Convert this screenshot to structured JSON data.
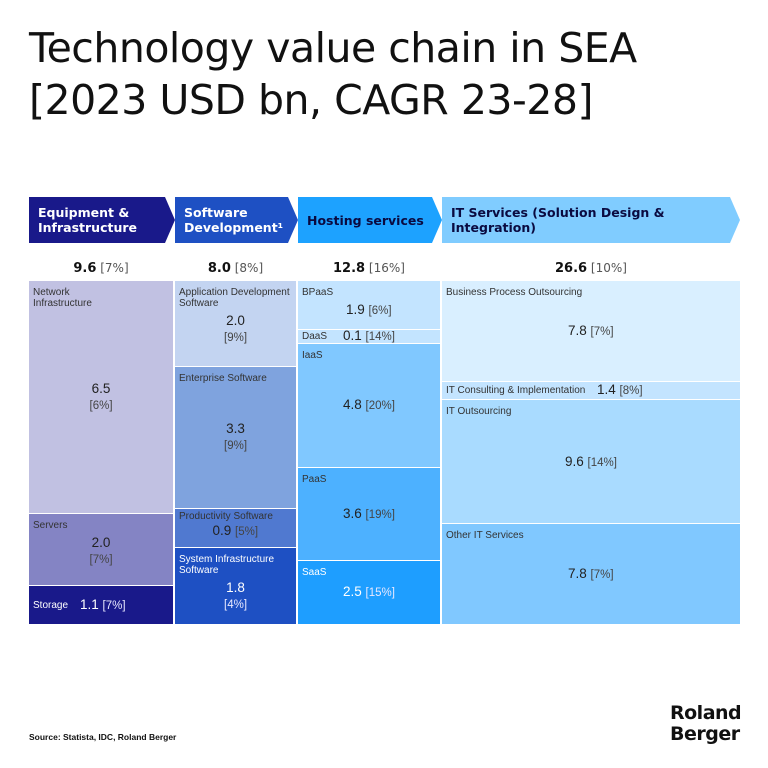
{
  "chart_data": {
    "type": "table",
    "title": "Technology value chain in SEA [2023 USD bn, CAGR 23-28]",
    "title_lines": [
      "Technology value chain in SEA",
      "[2023 USD bn, CAGR 23-28]"
    ],
    "units": "USD bn (2023), CAGR 2023-2028",
    "columns": [
      {
        "name": "Equipment & Infrastructure",
        "total": "9.6",
        "cagr": "[7%]",
        "header_color": "#19198a",
        "text_color": "#ffffff",
        "segments": [
          {
            "label": "Network Infrastructure",
            "value": 6.5,
            "cagr": "[6%]",
            "color": "#c1c1e2",
            "dark": false
          },
          {
            "label": "Servers",
            "value": 2.0,
            "cagr": "[7%]",
            "color": "#8484c4",
            "dark": false
          },
          {
            "label": "Storage",
            "value": 1.1,
            "cagr": "[7%]",
            "color": "#19198a",
            "dark": true
          }
        ]
      },
      {
        "name": "Software Development¹",
        "total": "8.0",
        "cagr": "[8%]",
        "header_color": "#1e50c3",
        "text_color": "#ffffff",
        "segments": [
          {
            "label": "Application Development Software",
            "value": 2.0,
            "cagr": "[9%]",
            "color": "#c3d4f1",
            "dark": false
          },
          {
            "label": "Enterprise Software",
            "value": 3.3,
            "cagr": "[9%]",
            "color": "#7fa3de",
            "dark": false
          },
          {
            "label": "Productivity Software",
            "value": 0.9,
            "cagr": "[5%]",
            "color": "#5079d0",
            "dark": false
          },
          {
            "label": "System Infrastructure Software",
            "value": 1.8,
            "cagr": "[4%]",
            "color": "#1e50c3",
            "dark": true
          }
        ]
      },
      {
        "name": "Hosting services",
        "total": "12.8",
        "cagr": "[16%]",
        "header_color": "#1da2ff",
        "text_color": "#0a0a40",
        "segments": [
          {
            "label": "BPaaS",
            "value": 1.9,
            "cagr": "[6%]",
            "color": "#c3e4ff",
            "dark": false
          },
          {
            "label": "DaaS",
            "value": 0.1,
            "cagr": "[14%]",
            "color": "#c3e4ff",
            "dark": false
          },
          {
            "label": "IaaS",
            "value": 4.8,
            "cagr": "[20%]",
            "color": "#80c8ff",
            "dark": false
          },
          {
            "label": "PaaS",
            "value": 3.6,
            "cagr": "[19%]",
            "color": "#4db1ff",
            "dark": false
          },
          {
            "label": "SaaS",
            "value": 2.5,
            "cagr": "[15%]",
            "color": "#1e9eff",
            "dark": true
          }
        ]
      },
      {
        "name": "IT Services (Solution Design & Integration)",
        "total": "26.6",
        "cagr": "[10%]",
        "header_color": "#80ccff",
        "text_color": "#0a0a40",
        "segments": [
          {
            "label": "Business Process Outsourcing",
            "value": 7.8,
            "cagr": "[7%]",
            "color": "#d9efff",
            "dark": false
          },
          {
            "label": "IT Consulting & Implementation",
            "value": 1.4,
            "cagr": "[8%]",
            "color": "#c3e4ff",
            "dark": false
          },
          {
            "label": "IT Outsourcing",
            "value": 9.6,
            "cagr": "[14%]",
            "color": "#a9dbff",
            "dark": false
          },
          {
            "label": "Other IT Services",
            "value": 7.8,
            "cagr": "[7%]",
            "color": "#80c8ff",
            "dark": false
          }
        ]
      }
    ]
  },
  "footer": {
    "source": "Source: Statista, IDC, Roland Berger",
    "logo": [
      "Roland",
      "Berger"
    ]
  }
}
